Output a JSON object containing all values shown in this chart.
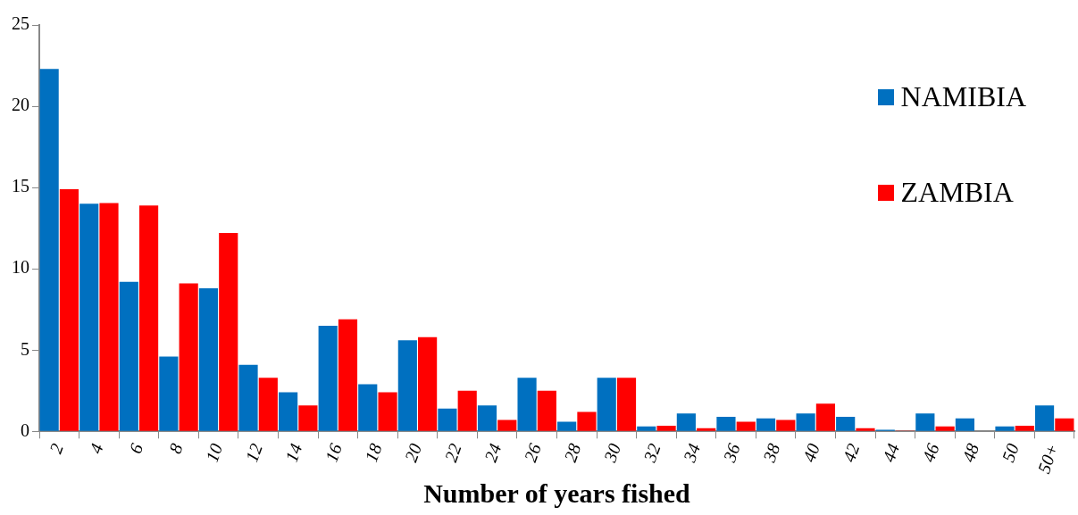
{
  "chart_data": {
    "type": "bar",
    "xlabel": "Number of years fished",
    "categories": [
      "2",
      "4",
      "6",
      "8",
      "10",
      "12",
      "14",
      "16",
      "18",
      "20",
      "22",
      "24",
      "26",
      "28",
      "30",
      "32",
      "34",
      "36",
      "38",
      "40",
      "42",
      "44",
      "46",
      "48",
      "50",
      "50+"
    ],
    "series": [
      {
        "name": "NAMIBIA",
        "color": "#0070c0",
        "values": [
          22.3,
          14.0,
          9.2,
          4.6,
          8.8,
          4.1,
          2.4,
          6.5,
          2.9,
          5.6,
          1.4,
          1.6,
          3.3,
          0.6,
          3.3,
          0.3,
          1.1,
          0.9,
          0.8,
          1.1,
          0.9,
          0.1,
          1.1,
          0.8,
          0.3,
          1.6
        ]
      },
      {
        "name": "ZAMBIA",
        "color": "#ff0000",
        "values": [
          14.9,
          14.05,
          13.9,
          9.1,
          12.2,
          3.3,
          1.6,
          6.9,
          2.4,
          5.8,
          2.5,
          0.7,
          2.5,
          1.2,
          3.3,
          0.35,
          0.2,
          0.6,
          0.7,
          1.7,
          0.2,
          0.05,
          0.3,
          0,
          0.35,
          0.8
        ]
      }
    ],
    "ylim": [
      0,
      25
    ],
    "yticks": [
      0,
      5,
      10,
      15,
      20,
      25
    ],
    "grid": false,
    "legend": "top right"
  }
}
